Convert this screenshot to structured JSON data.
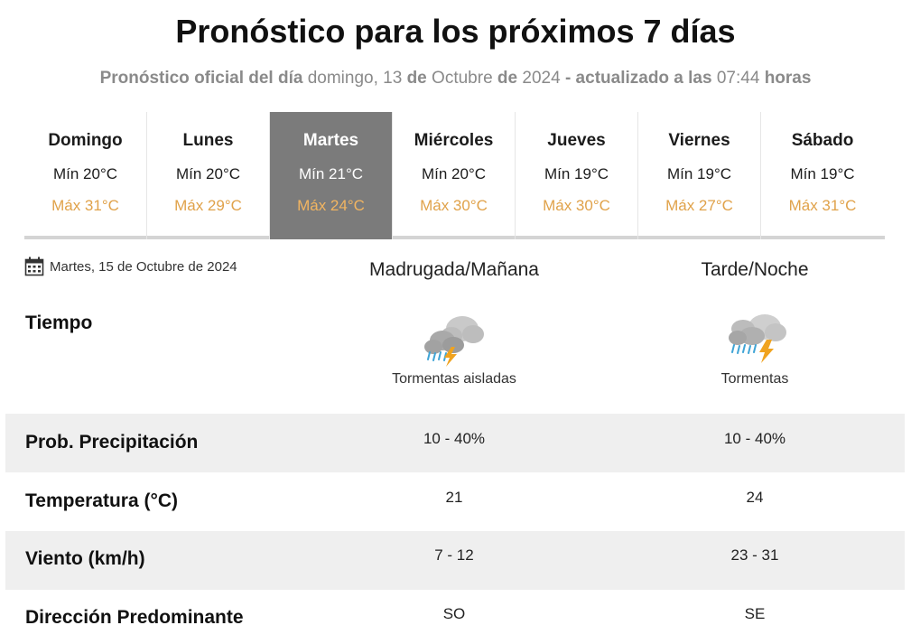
{
  "header": {
    "title": "Pronóstico para los próximos 7 días",
    "subtitle_prefix": "Pronóstico oficial del día",
    "subtitle_weekday": "domingo, 13",
    "subtitle_de1": "de",
    "subtitle_month": "Octubre",
    "subtitle_de2": "de",
    "subtitle_year": "2024",
    "subtitle_updated": "- actualizado a las",
    "subtitle_time": "07:44",
    "subtitle_hours": "horas"
  },
  "days": [
    {
      "name": "Domingo",
      "min": "Mín 20°C",
      "max": "Máx 31°C"
    },
    {
      "name": "Lunes",
      "min": "Mín 20°C",
      "max": "Máx 29°C"
    },
    {
      "name": "Martes",
      "min": "Mín 21°C",
      "max": "Máx 24°C"
    },
    {
      "name": "Miércoles",
      "min": "Mín 20°C",
      "max": "Máx 30°C"
    },
    {
      "name": "Jueves",
      "min": "Mín 19°C",
      "max": "Máx 30°C"
    },
    {
      "name": "Viernes",
      "min": "Mín 19°C",
      "max": "Máx 27°C"
    },
    {
      "name": "Sábado",
      "min": "Mín 19°C",
      "max": "Máx 31°C"
    }
  ],
  "selected_day_index": 2,
  "detail": {
    "date": "Martes, 15 de Octubre de 2024",
    "col1_title": "Madrugada/Mañana",
    "col2_title": "Tarde/Noche",
    "tiempo_label": "Tiempo",
    "col1_weather": {
      "icon": "cloud-rain-lightning-icon",
      "desc": "Tormentas aisladas"
    },
    "col2_weather": {
      "icon": "cloud-rain-lightning-icon",
      "desc": "Tormentas"
    },
    "rows": [
      {
        "label": "Prob. Precipitación",
        "v1": "10 - 40%",
        "v2": "10 - 40%"
      },
      {
        "label": "Temperatura (°C)",
        "v1": "21",
        "v2": "24"
      },
      {
        "label": "Viento (km/h)",
        "v1": "7 - 12",
        "v2": "23 - 31"
      },
      {
        "label": "Dirección Predominante",
        "v1": "SO",
        "v2": "SE"
      }
    ]
  },
  "colors": {
    "max_temp": "#e0a24a",
    "active_tab": "#7b7b7b",
    "row_gray": "#efefef",
    "subtitle": "#8a8a8a"
  }
}
